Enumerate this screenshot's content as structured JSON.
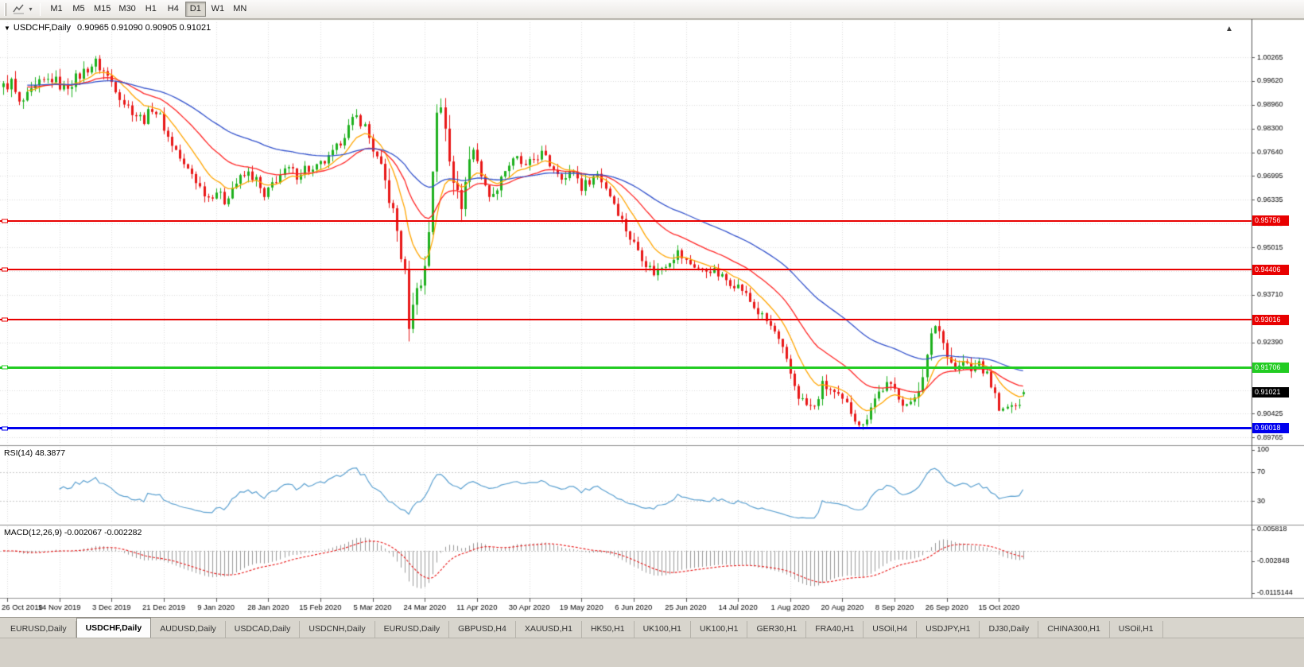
{
  "icons": {
    "chart_menu_triangle": "▼",
    "tool_caret": "▾",
    "shift_marker": "▲"
  },
  "toolbar": {
    "timeframes": [
      {
        "label": "M1",
        "active": false
      },
      {
        "label": "M5",
        "active": false
      },
      {
        "label": "M15",
        "active": false
      },
      {
        "label": "M30",
        "active": false
      },
      {
        "label": "H1",
        "active": false
      },
      {
        "label": "H4",
        "active": false
      },
      {
        "label": "D1",
        "active": true
      },
      {
        "label": "W1",
        "active": false
      },
      {
        "label": "MN",
        "active": false
      }
    ]
  },
  "chart": {
    "symbol_title": "USDCHF,Daily",
    "ohlc_text": "0.90965 0.91090 0.90905 0.91021",
    "current_price_label": "0.91021"
  },
  "indicators": {
    "rsi": {
      "label": "RSI(14) 48.3877",
      "period": 14,
      "current": 48.3877,
      "axis_labels": [
        "100",
        "70",
        "30"
      ],
      "levels": [
        70,
        30
      ],
      "color": "#5BA0D0"
    },
    "macd": {
      "label": "MACD(12,26,9) -0.002067 -0.002282",
      "fast": 12,
      "slow": 26,
      "signal": 9,
      "current_macd": -0.002067,
      "current_signal": -0.002282,
      "axis_labels": [
        "0.005818",
        "-0.002848",
        "-0.0115144"
      ],
      "scale": {
        "max": 0.005818,
        "min": -0.0115144
      },
      "histogram_color": "#9A9A9A",
      "signal_color": "#E81717"
    }
  },
  "chart_data": {
    "type": "candlestick",
    "symbol": "USDCHF",
    "timeframe": "Daily",
    "candle_count": 255,
    "last_candle": {
      "open": 0.90965,
      "high": 0.9109,
      "low": 0.90905,
      "close": 0.91021
    },
    "price_scale": {
      "max": 1.0124,
      "min": 0.896
    },
    "price_axis_labels": [
      "1.00265",
      "0.99620",
      "0.98960",
      "0.98300",
      "0.97640",
      "0.96995",
      "0.96335",
      "0.95675",
      "0.95015",
      "0.94370",
      "0.93710",
      "0.93050",
      "0.92390",
      "0.91730",
      "0.91070",
      "0.90425",
      "0.89765"
    ],
    "date_labels": [
      {
        "i": 1,
        "label": "26 Oct 2019"
      },
      {
        "i": 14,
        "label": "14 Nov 2019"
      },
      {
        "i": 27,
        "label": "3 Dec 2019"
      },
      {
        "i": 40,
        "label": "21 Dec 2019"
      },
      {
        "i": 53,
        "label": "9 Jan 2020"
      },
      {
        "i": 66,
        "label": "28 Jan 2020"
      },
      {
        "i": 79,
        "label": "15 Feb 2020"
      },
      {
        "i": 92,
        "label": "5 Mar 2020"
      },
      {
        "i": 105,
        "label": "24 Mar 2020"
      },
      {
        "i": 118,
        "label": "11 Apr 2020"
      },
      {
        "i": 131,
        "label": "30 Apr 2020"
      },
      {
        "i": 144,
        "label": "19 May 2020"
      },
      {
        "i": 157,
        "label": "6 Jun 2020"
      },
      {
        "i": 170,
        "label": "25 Jun 2020"
      },
      {
        "i": 183,
        "label": "14 Jul 2020"
      },
      {
        "i": 196,
        "label": "1 Aug 2020"
      },
      {
        "i": 209,
        "label": "20 Aug 2020"
      },
      {
        "i": 222,
        "label": "8 Sep 2020"
      },
      {
        "i": 235,
        "label": "26 Sep 2020"
      },
      {
        "i": 248,
        "label": "15 Oct 2020"
      }
    ],
    "price_anchors": [
      [
        0,
        0.9945
      ],
      [
        2,
        0.9958
      ],
      [
        4,
        0.9896
      ],
      [
        6,
        0.9916
      ],
      [
        9,
        0.9952
      ],
      [
        12,
        0.9968
      ],
      [
        15,
        0.9942
      ],
      [
        18,
        0.9968
      ],
      [
        21,
        0.9998
      ],
      [
        23,
        1.0012
      ],
      [
        25,
        0.9988
      ],
      [
        28,
        0.9945
      ],
      [
        30,
        0.9902
      ],
      [
        33,
        0.9868
      ],
      [
        35,
        0.9855
      ],
      [
        37,
        0.9888
      ],
      [
        39,
        0.9862
      ],
      [
        41,
        0.9806
      ],
      [
        43,
        0.977
      ],
      [
        45,
        0.9726
      ],
      [
        47,
        0.9706
      ],
      [
        49,
        0.9668
      ],
      [
        51,
        0.9641
      ],
      [
        53,
        0.9658
      ],
      [
        55,
        0.9629
      ],
      [
        57,
        0.9668
      ],
      [
        59,
        0.9692
      ],
      [
        61,
        0.9706
      ],
      [
        63,
        0.9688
      ],
      [
        65,
        0.9636
      ],
      [
        67,
        0.9678
      ],
      [
        69,
        0.9702
      ],
      [
        71,
        0.9718
      ],
      [
        73,
        0.9702
      ],
      [
        75,
        0.9722
      ],
      [
        77,
        0.9712
      ],
      [
        79,
        0.9731
      ],
      [
        81,
        0.9746
      ],
      [
        83,
        0.9776
      ],
      [
        85,
        0.9816
      ],
      [
        87,
        0.9851
      ],
      [
        88,
        0.9862
      ],
      [
        90,
        0.9836
      ],
      [
        92,
        0.9773
      ],
      [
        94,
        0.9721
      ],
      [
        96,
        0.9641
      ],
      [
        98,
        0.9546
      ],
      [
        100,
        0.9421
      ],
      [
        101,
        0.9296
      ],
      [
        102,
        0.9331
      ],
      [
        103,
        0.9411
      ],
      [
        104,
        0.9391
      ],
      [
        105,
        0.9456
      ],
      [
        106,
        0.9553
      ],
      [
        107,
        0.9721
      ],
      [
        108,
        0.9861
      ],
      [
        109,
        0.9886
      ],
      [
        110,
        0.9841
      ],
      [
        111,
        0.9761
      ],
      [
        112,
        0.9701
      ],
      [
        113,
        0.9641
      ],
      [
        114,
        0.9626
      ],
      [
        115,
        0.9681
      ],
      [
        116,
        0.9746
      ],
      [
        117,
        0.9771
      ],
      [
        118,
        0.9746
      ],
      [
        119,
        0.9701
      ],
      [
        120,
        0.9666
      ],
      [
        122,
        0.9641
      ],
      [
        124,
        0.9701
      ],
      [
        126,
        0.9731
      ],
      [
        128,
        0.9746
      ],
      [
        130,
        0.9721
      ],
      [
        132,
        0.9746
      ],
      [
        134,
        0.9761
      ],
      [
        136,
        0.9731
      ],
      [
        138,
        0.9712
      ],
      [
        140,
        0.9692
      ],
      [
        142,
        0.9716
      ],
      [
        144,
        0.9668
      ],
      [
        146,
        0.9688
      ],
      [
        148,
        0.9706
      ],
      [
        150,
        0.9668
      ],
      [
        152,
        0.9626
      ],
      [
        154,
        0.9576
      ],
      [
        156,
        0.9528
      ],
      [
        158,
        0.9496
      ],
      [
        160,
        0.9458
      ],
      [
        162,
        0.9432
      ],
      [
        164,
        0.9448
      ],
      [
        166,
        0.9468
      ],
      [
        168,
        0.9488
      ],
      [
        170,
        0.9462
      ],
      [
        172,
        0.9452
      ],
      [
        174,
        0.9436
      ],
      [
        176,
        0.9442
      ],
      [
        178,
        0.9426
      ],
      [
        180,
        0.9412
      ],
      [
        182,
        0.9402
      ],
      [
        184,
        0.9386
      ],
      [
        186,
        0.9352
      ],
      [
        188,
        0.9322
      ],
      [
        190,
        0.9298
      ],
      [
        192,
        0.9268
      ],
      [
        194,
        0.9216
      ],
      [
        196,
        0.9152
      ],
      [
        198,
        0.9092
      ],
      [
        200,
        0.9066
      ],
      [
        202,
        0.9058
      ],
      [
        204,
        0.9122
      ],
      [
        206,
        0.9108
      ],
      [
        208,
        0.9086
      ],
      [
        210,
        0.9066
      ],
      [
        212,
        0.9032
      ],
      [
        214,
        0.9006
      ],
      [
        216,
        0.9068
      ],
      [
        218,
        0.9102
      ],
      [
        220,
        0.9122
      ],
      [
        222,
        0.9108
      ],
      [
        224,
        0.9076
      ],
      [
        226,
        0.9062
      ],
      [
        228,
        0.9118
      ],
      [
        230,
        0.9196
      ],
      [
        231,
        0.9252
      ],
      [
        232,
        0.9291
      ],
      [
        233,
        0.9272
      ],
      [
        234,
        0.9238
      ],
      [
        235,
        0.9216
      ],
      [
        236,
        0.9186
      ],
      [
        237,
        0.9168
      ],
      [
        238,
        0.9172
      ],
      [
        239,
        0.9188
      ],
      [
        240,
        0.9176
      ],
      [
        241,
        0.9158
      ],
      [
        242,
        0.9172
      ],
      [
        243,
        0.9186
      ],
      [
        244,
        0.9162
      ],
      [
        245,
        0.9148
      ],
      [
        246,
        0.9122
      ],
      [
        248,
        0.9062
      ],
      [
        249,
        0.9048
      ],
      [
        250,
        0.9056
      ],
      [
        251,
        0.9068
      ],
      [
        252,
        0.9052
      ],
      [
        253,
        0.9078
      ],
      [
        254,
        0.91021
      ]
    ],
    "horizontal_lines": [
      {
        "price": 0.95756,
        "label": "0.95756",
        "color": "#E80000",
        "thickness": 2
      },
      {
        "price": 0.94406,
        "label": "0.94406",
        "color": "#E80000",
        "thickness": 2
      },
      {
        "price": 0.93016,
        "label": "0.93016",
        "color": "#E80000",
        "thickness": 2
      },
      {
        "price": 0.91706,
        "label": "0.91706",
        "color": "#22CC22",
        "thickness": 3
      },
      {
        "price": 0.90018,
        "label": "0.90018",
        "color": "#0000EE",
        "thickness": 3
      }
    ],
    "moving_averages": [
      {
        "period": 10,
        "color": "#FFA500"
      },
      {
        "period": 25,
        "color": "#FF2525"
      },
      {
        "period": 56,
        "color": "#3352CC"
      }
    ],
    "bull_color": "#1EB01E",
    "bear_color": "#E81717",
    "grid_color": "#DCDCDC"
  },
  "tabs": [
    {
      "label": "EURUSD,Daily",
      "active": false
    },
    {
      "label": "USDCHF,Daily",
      "active": true
    },
    {
      "label": "AUDUSD,Daily",
      "active": false
    },
    {
      "label": "USDCAD,Daily",
      "active": false
    },
    {
      "label": "USDCNH,Daily",
      "active": false
    },
    {
      "label": "EURUSD,Daily",
      "active": false
    },
    {
      "label": "GBPUSD,H4",
      "active": false
    },
    {
      "label": "XAUUSD,H1",
      "active": false
    },
    {
      "label": "HK50,H1",
      "active": false
    },
    {
      "label": "UK100,H1",
      "active": false
    },
    {
      "label": "UK100,H1",
      "active": false
    },
    {
      "label": "GER30,H1",
      "active": false
    },
    {
      "label": "FRA40,H1",
      "active": false
    },
    {
      "label": "USOil,H4",
      "active": false
    },
    {
      "label": "USDJPY,H1",
      "active": false
    },
    {
      "label": "DJ30,Daily",
      "active": false
    },
    {
      "label": "CHINA300,H1",
      "active": false
    },
    {
      "label": "USOil,H1",
      "active": false
    }
  ]
}
